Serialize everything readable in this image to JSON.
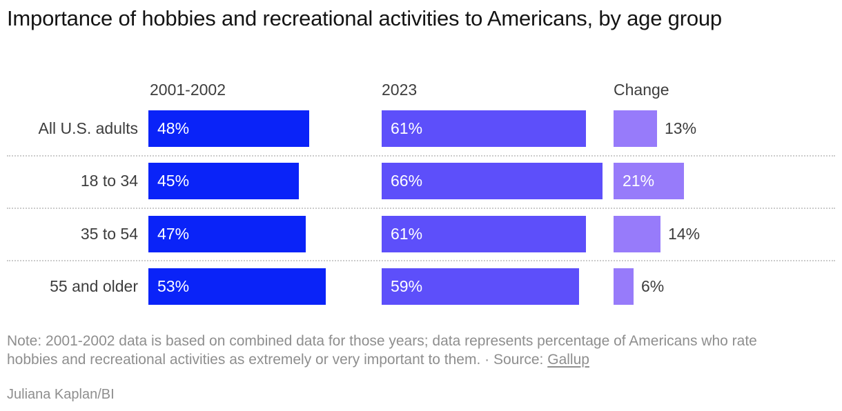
{
  "header": {
    "title": "Importance of hobbies and recreational activities to Americans, by age group"
  },
  "chart_data": {
    "type": "bar",
    "orientation": "horizontal",
    "title": "Importance of hobbies and recreational activities to Americans, by age group",
    "categories": [
      "All U.S. adults",
      "18 to 34",
      "35 to 54",
      "55 and older"
    ],
    "series": [
      {
        "name": "2001-2002",
        "values": [
          48,
          45,
          47,
          53
        ],
        "color": "#0a23f8"
      },
      {
        "name": "2023",
        "values": [
          61,
          66,
          61,
          59
        ],
        "color": "#5d4ffa"
      },
      {
        "name": "Change",
        "values": [
          13,
          21,
          14,
          6
        ],
        "color": "#977bfa"
      }
    ],
    "value_suffix": "%",
    "xlim": [
      0,
      100
    ],
    "grid": false,
    "legend_position": "column headers above each bar group",
    "value_labels": "inside bar in white when bar is wide, outside in dark gray when narrow",
    "row_separators": "dotted horizontal lines between rows"
  },
  "colors": {
    "title_text": "#141414",
    "label_text": "#3d3d3d",
    "muted_text": "#8e8e8e",
    "separator": "#cbcbcb"
  },
  "note": {
    "text": "Note: 2001-2002 data is based on combined data for those years; data represents percentage of Americans who rate hobbies and recreational activities as extremely or very important to them.",
    "separator": "·",
    "source_label": "Source:",
    "source_link_text": "Gallup"
  },
  "byline": "Juliana Kaplan/BI"
}
